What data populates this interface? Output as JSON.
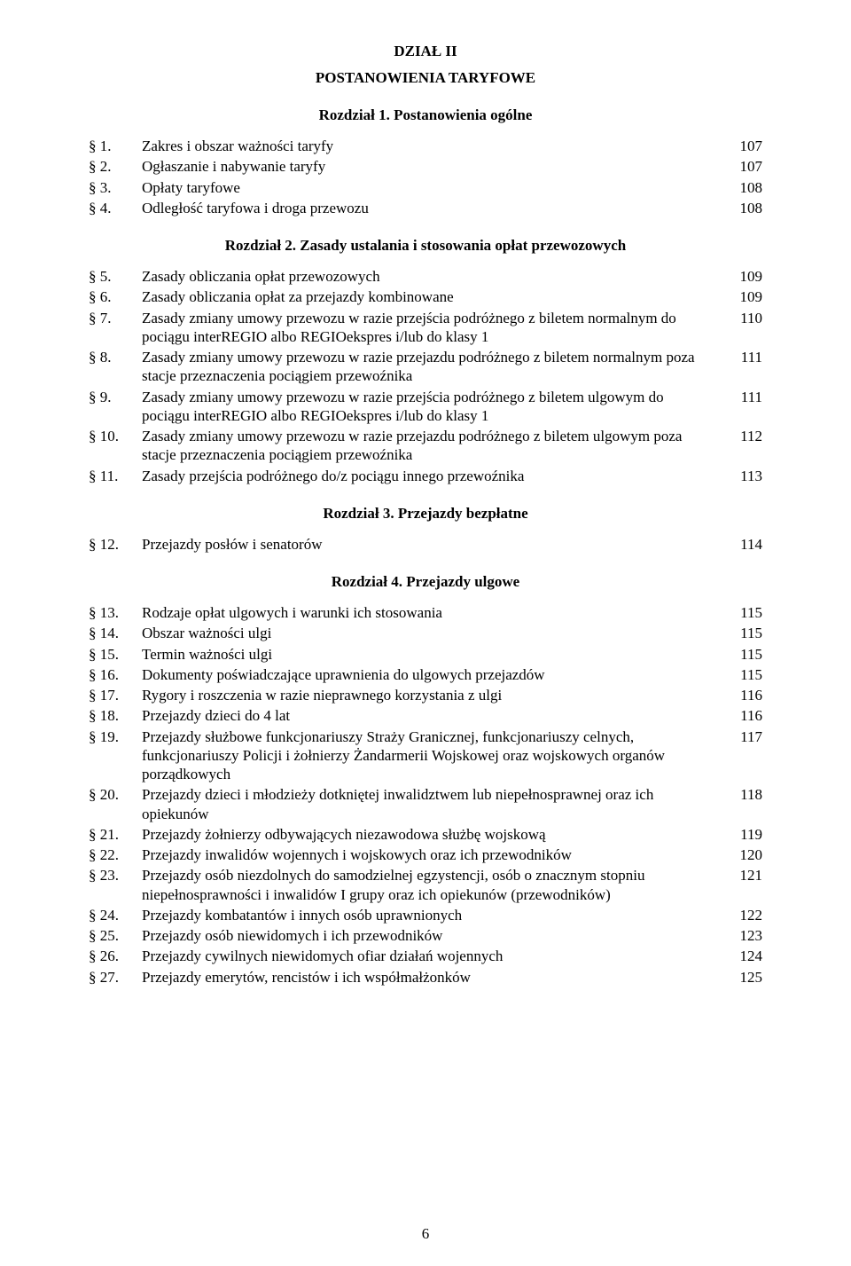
{
  "headings": {
    "dzial": "DZIAŁ II",
    "subtitle": "POSTANOWIENIA TARYFOWE",
    "ch1": "Rozdział 1. Postanowienia ogólne",
    "ch2": "Rozdział 2. Zasady ustalania i stosowania opłat przewozowych",
    "ch3": "Rozdział 3. Przejazdy bezpłatne",
    "ch4": "Rozdział 4. Przejazdy ulgowe"
  },
  "entries": {
    "e1": {
      "sec": "§ 1.",
      "title": "Zakres i obszar ważności taryfy",
      "page": "107"
    },
    "e2": {
      "sec": "§ 2.",
      "title": "Ogłaszanie i nabywanie taryfy",
      "page": "107"
    },
    "e3": {
      "sec": "§ 3.",
      "title": "Opłaty taryfowe",
      "page": "108"
    },
    "e4": {
      "sec": "§ 4.",
      "title": "Odległość taryfowa i droga przewozu",
      "page": "108"
    },
    "e5": {
      "sec": "§ 5.",
      "title": "Zasady obliczania opłat przewozowych",
      "page": "109"
    },
    "e6": {
      "sec": "§ 6.",
      "title": "Zasady obliczania opłat za przejazdy kombinowane",
      "page": "109"
    },
    "e7": {
      "sec": "§ 7.",
      "title": "Zasady zmiany umowy przewozu w razie przejścia podróżnego z biletem normalnym do pociągu interREGIO albo REGIOekspres i/lub do klasy 1",
      "page": "110"
    },
    "e8": {
      "sec": "§ 8.",
      "title": "Zasady zmiany umowy przewozu w razie przejazdu podróżnego z biletem normalnym poza stacje przeznaczenia pociągiem przewoźnika",
      "page": "111"
    },
    "e9": {
      "sec": "§ 9.",
      "title": "Zasady zmiany umowy przewozu w razie przejścia podróżnego z biletem ulgowym do pociągu interREGIO albo REGIOekspres i/lub do klasy 1",
      "page": "111"
    },
    "e10": {
      "sec": "§ 10.",
      "title": "Zasady zmiany umowy przewozu w razie przejazdu podróżnego z biletem ulgowym poza stacje przeznaczenia pociągiem przewoźnika",
      "page": "112"
    },
    "e11": {
      "sec": "§ 11.",
      "title": "Zasady przejścia podróżnego do/z pociągu innego przewoźnika",
      "page": "113"
    },
    "e12": {
      "sec": "§ 12.",
      "title": "Przejazdy posłów i senatorów",
      "page": "114"
    },
    "e13": {
      "sec": "§ 13.",
      "title": "Rodzaje opłat ulgowych i warunki ich stosowania",
      "page": "115"
    },
    "e14": {
      "sec": "§ 14.",
      "title": "Obszar ważności ulgi",
      "page": "115"
    },
    "e15": {
      "sec": "§ 15.",
      "title": "Termin ważności ulgi",
      "page": "115"
    },
    "e16": {
      "sec": "§ 16.",
      "title": "Dokumenty poświadczające uprawnienia do ulgowych przejazdów",
      "page": "115"
    },
    "e17": {
      "sec": "§ 17.",
      "title": "Rygory i roszczenia w razie nieprawnego korzystania z ulgi",
      "page": "116"
    },
    "e18": {
      "sec": "§ 18.",
      "title": "Przejazdy dzieci do 4 lat",
      "page": "116"
    },
    "e19": {
      "sec": "§ 19.",
      "title": "Przejazdy służbowe funkcjonariuszy Straży Granicznej, funkcjonariuszy celnych, funkcjonariuszy Policji i żołnierzy Żandarmerii Wojskowej oraz wojskowych organów porządkowych",
      "page": "117"
    },
    "e20": {
      "sec": "§ 20.",
      "title": "Przejazdy dzieci i młodzieży dotkniętej inwalidztwem lub niepełnosprawnej oraz ich opiekunów",
      "page": "118"
    },
    "e21": {
      "sec": "§ 21.",
      "title": "Przejazdy żołnierzy odbywających niezawodowa służbę wojskową",
      "page": "119"
    },
    "e22": {
      "sec": "§ 22.",
      "title": "Przejazdy inwalidów wojennych i wojskowych oraz ich przewodników",
      "page": "120"
    },
    "e23": {
      "sec": "§ 23.",
      "title": "Przejazdy osób niezdolnych do samodzielnej egzystencji, osób o znacznym stopniu niepełnosprawności i inwalidów I grupy oraz ich opiekunów (przewodników)",
      "page": "121"
    },
    "e24": {
      "sec": "§ 24.",
      "title": "Przejazdy kombatantów i innych osób uprawnionych",
      "page": "122"
    },
    "e25": {
      "sec": "§ 25.",
      "title": "Przejazdy osób niewidomych i ich przewodników",
      "page": "123"
    },
    "e26": {
      "sec": "§ 26.",
      "title": "Przejazdy cywilnych niewidomych ofiar działań wojennych",
      "page": "124"
    },
    "e27": {
      "sec": "§ 27.",
      "title": "Przejazdy emerytów, rencistów i ich współmałżonków",
      "page": "125"
    }
  },
  "pageNumber": "6"
}
